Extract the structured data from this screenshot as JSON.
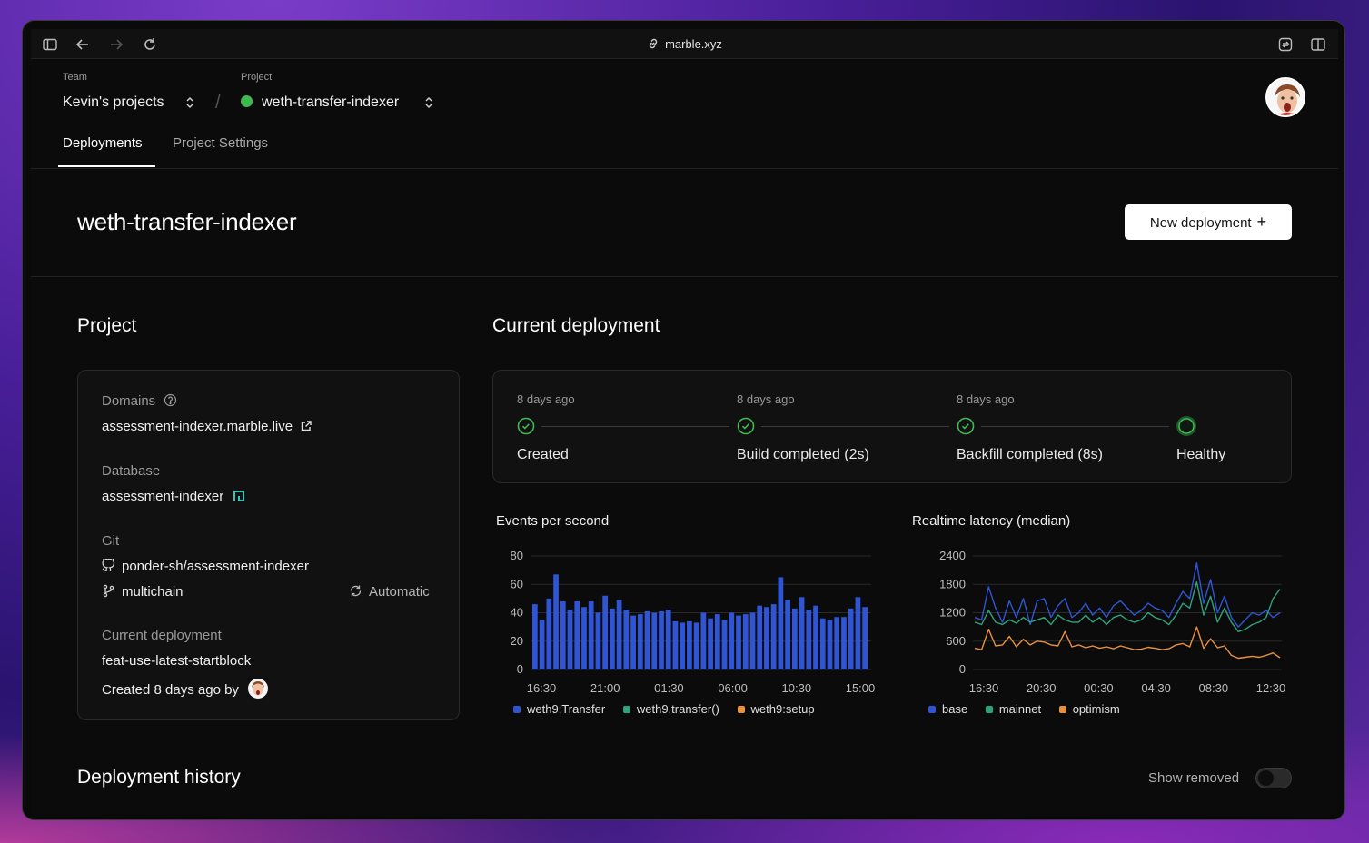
{
  "browser": {
    "url": "marble.xyz"
  },
  "header": {
    "team_label": "Team",
    "team_value": "Kevin's projects",
    "project_label": "Project",
    "project_value": "weth-transfer-indexer",
    "tabs": [
      "Deployments",
      "Project Settings"
    ]
  },
  "page": {
    "title": "weth-transfer-indexer",
    "new_deployment": "New deployment"
  },
  "project": {
    "heading": "Project",
    "domains_label": "Domains",
    "domain": "assessment-indexer.marble.live",
    "database_label": "Database",
    "database": "assessment-indexer",
    "git_label": "Git",
    "repo": "ponder-sh/assessment-indexer",
    "branch": "multichain",
    "sync": "Automatic",
    "current_label": "Current deployment",
    "current_name": "feat-use-latest-startblock",
    "created_by": "Created 8 days ago by"
  },
  "current": {
    "heading": "Current deployment",
    "steps": [
      {
        "date": "8 days ago",
        "name": "Created"
      },
      {
        "date": "8 days ago",
        "name": "Build completed (2s)"
      },
      {
        "date": "8 days ago",
        "name": "Backfill completed (8s)"
      },
      {
        "date": "",
        "name": "Healthy"
      }
    ]
  },
  "history": {
    "heading": "Deployment history",
    "show_removed": "Show removed",
    "show_removed_on": false
  },
  "colors": {
    "blue": "#2f55d4",
    "green": "#2ea37a",
    "orange": "#e8913a"
  },
  "chart_data": [
    {
      "type": "bar",
      "title": "Events per second",
      "ylim": [
        0,
        80
      ],
      "yticks": [
        "0",
        "20",
        "40",
        "60",
        "80"
      ],
      "xticks": [
        "16:30",
        "21:00",
        "01:30",
        "06:00",
        "10:30",
        "15:00"
      ],
      "legend": [
        "weth9:Transfer",
        "weth9.transfer()",
        "weth9:setup"
      ],
      "series": [
        {
          "name": "weth9:Transfer",
          "values": [
            46,
            35,
            50,
            67,
            48,
            42,
            48,
            44,
            48,
            40,
            52,
            43,
            49,
            42,
            38,
            39,
            41,
            40,
            41,
            42,
            34,
            33,
            34,
            33,
            40,
            36,
            39,
            35,
            40,
            38,
            39,
            40,
            45,
            44,
            46,
            65,
            49,
            43,
            51,
            42,
            45,
            36,
            35,
            37,
            37,
            43,
            51,
            44
          ]
        }
      ]
    },
    {
      "type": "line",
      "title": "Realtime latency (median)",
      "ylim": [
        0,
        2400
      ],
      "yticks": [
        "0",
        "600",
        "1200",
        "1800",
        "2400"
      ],
      "xticks": [
        "16:30",
        "20:30",
        "00:30",
        "04:30",
        "08:30",
        "12:30"
      ],
      "legend": [
        "base",
        "mainnet",
        "optimism"
      ],
      "series": [
        {
          "name": "base",
          "values": [
            1100,
            1050,
            1750,
            1300,
            1000,
            1450,
            1100,
            1500,
            950,
            1450,
            1500,
            1100,
            1350,
            1500,
            1100,
            1200,
            1400,
            1150,
            1300,
            1100,
            1350,
            1450,
            1300,
            1150,
            1250,
            1400,
            1300,
            1250,
            1100,
            1400,
            1650,
            1500,
            2250,
            1400,
            1900,
            1200,
            1550,
            1100,
            900,
            1050,
            1200,
            1150,
            1250,
            1100,
            1200
          ]
        },
        {
          "name": "mainnet",
          "values": [
            1000,
            950,
            1250,
            1000,
            950,
            1050,
            980,
            1100,
            1000,
            1050,
            1100,
            950,
            1150,
            1050,
            1000,
            1000,
            1150,
            1000,
            1100,
            950,
            1100,
            1150,
            1050,
            1000,
            1050,
            1200,
            1100,
            1050,
            950,
            1150,
            1400,
            1300,
            1850,
            1150,
            1550,
            1000,
            1300,
            1000,
            800,
            850,
            950,
            1000,
            1100,
            1500,
            1700
          ]
        },
        {
          "name": "optimism",
          "values": [
            450,
            420,
            850,
            500,
            520,
            700,
            480,
            640,
            520,
            600,
            580,
            520,
            500,
            800,
            480,
            520,
            460,
            500,
            450,
            480,
            440,
            500,
            460,
            420,
            430,
            470,
            450,
            420,
            440,
            520,
            550,
            480,
            900,
            450,
            650,
            460,
            500,
            300,
            240,
            260,
            280,
            260,
            300,
            350,
            250
          ]
        }
      ]
    }
  ]
}
